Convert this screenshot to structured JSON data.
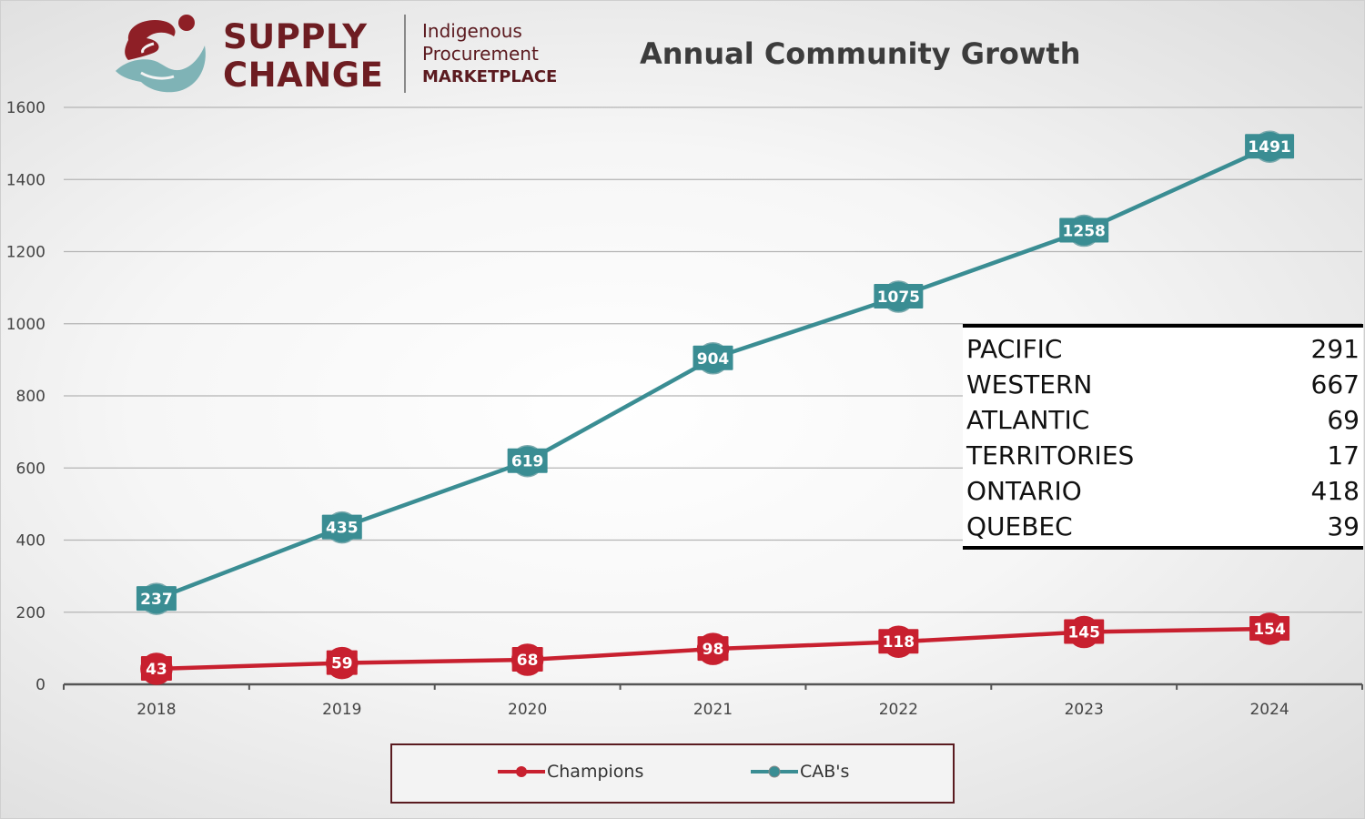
{
  "header": {
    "logo_line1": "SUPPLY",
    "logo_line2": "CHANGE",
    "logo_sub1": "Indigenous",
    "logo_sub2": "Procurement",
    "logo_sub3": "MARKETPLACE",
    "title": "Annual Community Growth"
  },
  "colors": {
    "champions": "#c8202f",
    "cabs": "#3a8d93",
    "logo_red": "#8e1f26",
    "logo_teal": "#7fb3b6"
  },
  "regions": [
    {
      "name": "PACIFIC",
      "value": "291"
    },
    {
      "name": "WESTERN",
      "value": "667"
    },
    {
      "name": "ATLANTIC",
      "value": "69"
    },
    {
      "name": "TERRITORIES",
      "value": "17"
    },
    {
      "name": "ONTARIO",
      "value": "418"
    },
    {
      "name": "QUEBEC",
      "value": "39"
    }
  ],
  "chart_data": {
    "type": "line",
    "title": "Annual Community Growth",
    "x": [
      "2018",
      "2019",
      "2020",
      "2021",
      "2022",
      "2023",
      "2024"
    ],
    "yticks": [
      "0",
      "200",
      "400",
      "600",
      "800",
      "1000",
      "1200",
      "1400",
      "1600"
    ],
    "ylim": [
      0,
      1600
    ],
    "grid": true,
    "legend_position": "bottom",
    "series": [
      {
        "name": "Champions",
        "values": [
          43,
          59,
          68,
          98,
          118,
          145,
          154
        ],
        "marker": "circle"
      },
      {
        "name": "CAB's",
        "values": [
          237,
          435,
          619,
          904,
          1075,
          1258,
          1491
        ],
        "marker": "circle"
      }
    ]
  }
}
